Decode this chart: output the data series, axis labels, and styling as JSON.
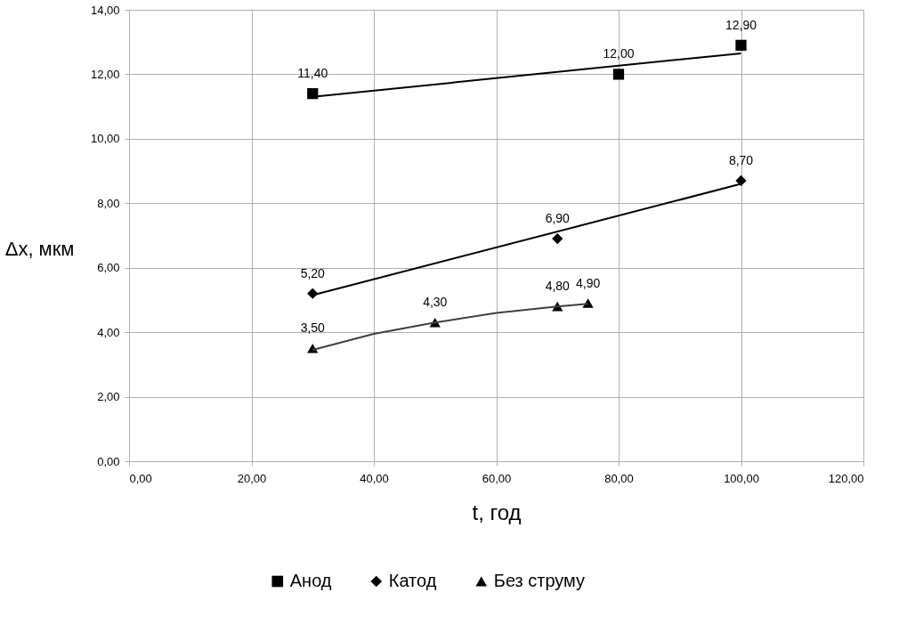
{
  "chart_data": {
    "type": "scatter",
    "xlabel": "t, год",
    "ylabel": "Δx, мкм",
    "xlim": [
      0,
      120
    ],
    "xticks": [
      {
        "value": 0,
        "label": "0,00"
      },
      {
        "value": 20,
        "label": "20,00"
      },
      {
        "value": 40,
        "label": "40,00"
      },
      {
        "value": 60,
        "label": "60,00"
      },
      {
        "value": 80,
        "label": "80,00"
      },
      {
        "value": 100,
        "label": "100,00"
      },
      {
        "value": 120,
        "label": "120,00"
      }
    ],
    "ylim": [
      0,
      14
    ],
    "yticks": [
      {
        "value": 0,
        "label": "0,00"
      },
      {
        "value": 2,
        "label": "2,00"
      },
      {
        "value": 4,
        "label": "4,00"
      },
      {
        "value": 6,
        "label": "6,00"
      },
      {
        "value": 8,
        "label": "8,00"
      },
      {
        "value": 10,
        "label": "10,00"
      },
      {
        "value": 12,
        "label": "12,00"
      },
      {
        "value": 14,
        "label": "14,00"
      }
    ],
    "grid": true,
    "legend": "bottom",
    "series": [
      {
        "name": "Анод",
        "color": "#000000",
        "marker": "square",
        "x": [
          30,
          80,
          100
        ],
        "values": [
          11.4,
          12.0,
          12.9
        ],
        "value_labels": [
          "11,40",
          "12,00",
          "12,90"
        ]
      },
      {
        "name": "Катод",
        "color": "#000000",
        "marker": "diamond",
        "x": [
          30,
          70,
          100
        ],
        "values": [
          5.2,
          6.9,
          8.7
        ],
        "value_labels": [
          "5,20",
          "6,90",
          "8,70"
        ]
      },
      {
        "name": "Без струму",
        "color": "#000000",
        "marker": "triangle",
        "x": [
          30,
          50,
          70,
          75
        ],
        "values": [
          3.5,
          4.3,
          4.8,
          4.9
        ],
        "value_labels": [
          "3,50",
          "4,30",
          "4,80",
          "4,90"
        ]
      },
      {
        "type": "line",
        "color": "#000000",
        "line_style": "solid",
        "x": [
          30,
          100
        ],
        "values": [
          11.3,
          12.65
        ]
      },
      {
        "type": "line",
        "color": "#000000",
        "line_style": "solid",
        "x": [
          30,
          100
        ],
        "values": [
          5.15,
          8.6
        ]
      },
      {
        "type": "line",
        "color": "#404040",
        "line_style": "solid",
        "x": [
          30,
          40,
          50,
          60,
          70,
          75
        ],
        "values": [
          3.45,
          3.95,
          4.3,
          4.6,
          4.8,
          4.88
        ]
      }
    ]
  }
}
